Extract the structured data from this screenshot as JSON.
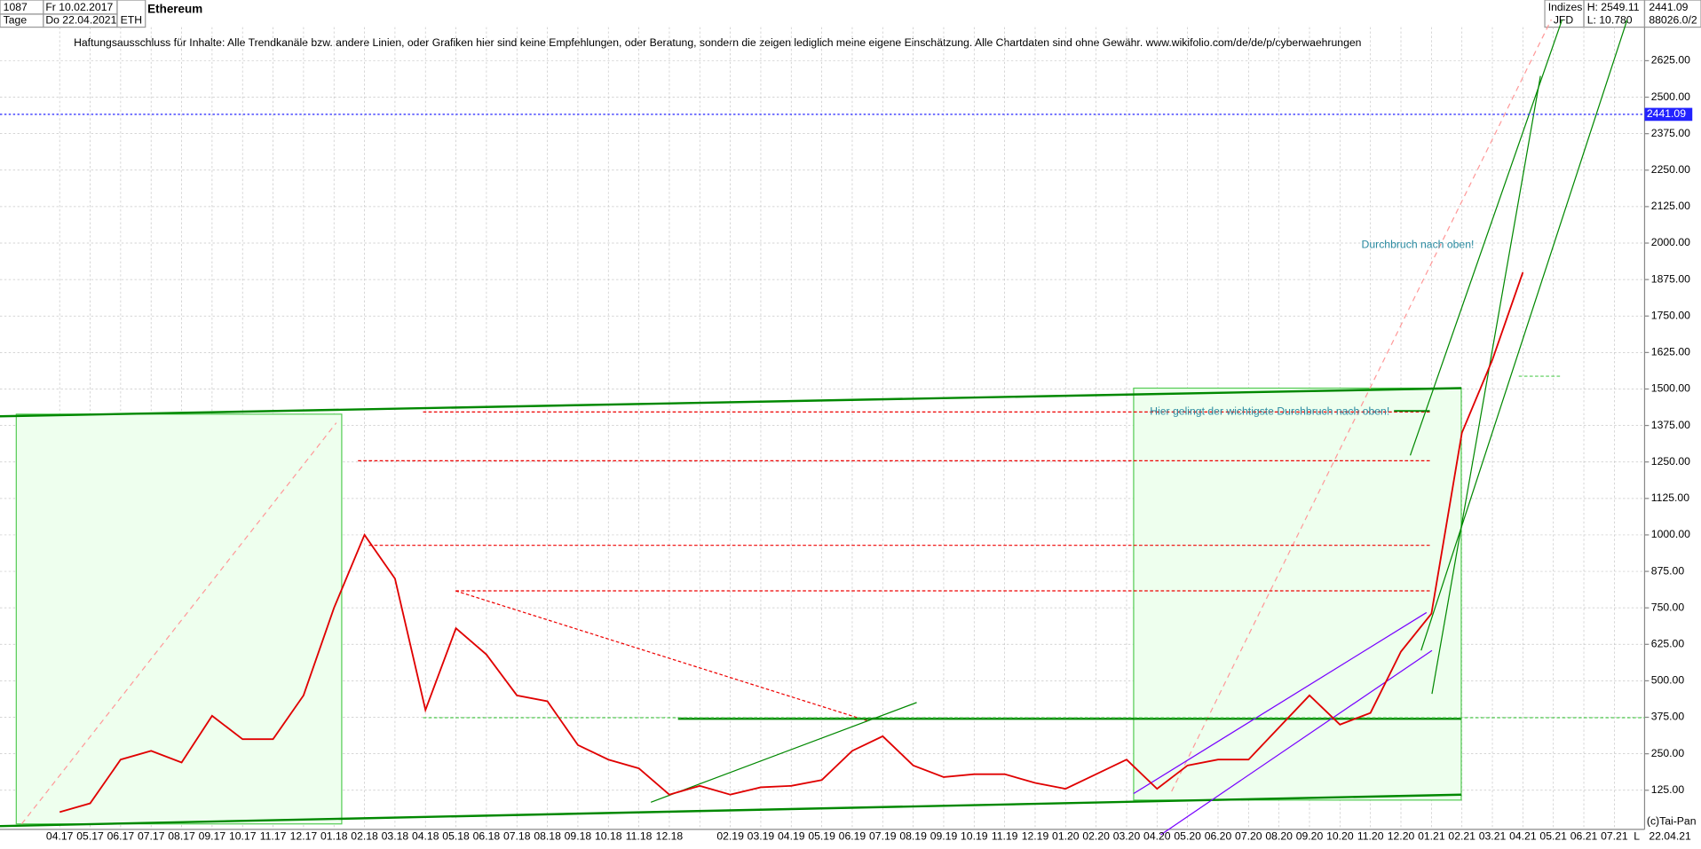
{
  "header": {
    "bars": "1087",
    "start": "Fr 10.02.2017",
    "period": "Tage",
    "end": "Do 22.04.2021",
    "symbol": "ETH",
    "group": "Indizes",
    "source": "JFD",
    "high": "H: 2549.11",
    "low": "L: 10.780",
    "last": "2441.09",
    "volume": "88026.0/2"
  },
  "footer": {
    "copyright": "(c)Tai-Pan",
    "date": "22.04.21",
    "scale": "L"
  },
  "chart_data": {
    "type": "line",
    "title": "Ethereum",
    "subtitle": "Haftungsausschluss für Inhalte: Alle Trendkanäle bzw. andere Linien, oder Grafiken hier sind keine Empfehlungen, oder Beratung, sondern die zeigen lediglich meine eigene Einschätzung. Alle Chartdaten sind ohne Gewähr.  www.wikifolio.com/de/de/p/cyberwaehrungen",
    "annotations": [
      "Durchbruch nach oben!",
      "Hier gelingt der wichtigste Durchbruch nach oben!"
    ],
    "categories": [
      "04.17",
      "05.17",
      "06.17",
      "07.17",
      "08.17",
      "09.17",
      "10.17",
      "11.17",
      "12.17",
      "01.18",
      "02.18",
      "03.18",
      "04.18",
      "05.18",
      "06.18",
      "07.18",
      "08.18",
      "09.18",
      "10.18",
      "11.18",
      "12.18",
      null,
      "02.19",
      "03.19",
      "04.19",
      "05.19",
      "06.19",
      "07.19",
      "08.19",
      "09.19",
      "10.19",
      "11.19",
      "12.19",
      "01.20",
      "02.20",
      "03.20",
      "04.20",
      "05.20",
      "06.20",
      "07.20",
      "08.20",
      "09.20",
      "10.20",
      "11.20",
      "12.20",
      "01.21",
      "02.21",
      "03.21",
      "04.21",
      "05.21",
      "06.21",
      "07.21"
    ],
    "values": [
      50,
      80,
      230,
      260,
      220,
      380,
      300,
      300,
      450,
      750,
      1000,
      850,
      400,
      680,
      590,
      450,
      430,
      280,
      230,
      200,
      110,
      140,
      110,
      135,
      140,
      160,
      260,
      310,
      210,
      170,
      180,
      180,
      150,
      130,
      180,
      230,
      130,
      210,
      230,
      230,
      340,
      450,
      350,
      390,
      600,
      730,
      1350,
      1600,
      1900,
      null,
      null,
      null
    ],
    "color": "#e00000",
    "current": {
      "value": 2441.09,
      "label": "2441.09"
    },
    "ylim": [
      -9,
      2766
    ],
    "yticks": [
      {
        "value": 125,
        "label": "125.00"
      },
      {
        "value": 250,
        "label": "250.00"
      },
      {
        "value": 375,
        "label": "375.00"
      },
      {
        "value": 500,
        "label": "500.00"
      },
      {
        "value": 625,
        "label": "625.00"
      },
      {
        "value": 750,
        "label": "750.00"
      },
      {
        "value": 875,
        "label": "875.00"
      },
      {
        "value": 1000,
        "label": "1000.00"
      },
      {
        "value": 1125,
        "label": "1125.00"
      },
      {
        "value": 1250,
        "label": "1250.00"
      },
      {
        "value": 1375,
        "label": "1375.00"
      },
      {
        "value": 1500,
        "label": "1500.00"
      },
      {
        "value": 1625,
        "label": "1625.00"
      },
      {
        "value": 1750,
        "label": "1750.00"
      },
      {
        "value": 1875,
        "label": "1875.00"
      },
      {
        "value": 2000,
        "label": "2000.00"
      },
      {
        "value": 2125,
        "label": "2125.00"
      },
      {
        "value": 2250,
        "label": "2250.00"
      },
      {
        "value": 2375,
        "label": "2375.00"
      },
      {
        "value": 2500,
        "label": "2500.00"
      },
      {
        "value": 2625,
        "label": "2625.00"
      }
    ],
    "grid": true
  }
}
